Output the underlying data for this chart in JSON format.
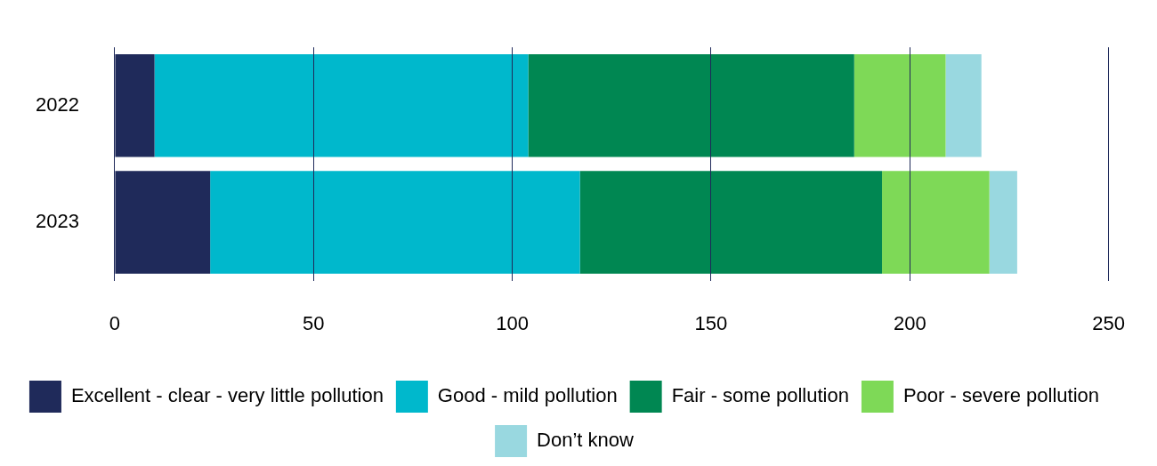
{
  "chart_data": {
    "type": "bar",
    "orientation": "horizontal",
    "stacked": true,
    "categories": [
      "2022",
      "2023"
    ],
    "series": [
      {
        "name": "Excellent - clear - very little pollution",
        "color": "#1f2a5a",
        "values": [
          10,
          24
        ]
      },
      {
        "name": "Good - mild pollution",
        "color": "#00b8cc",
        "values": [
          94,
          93
        ]
      },
      {
        "name": "Fair - some pollution",
        "color": "#008752",
        "values": [
          82,
          76
        ]
      },
      {
        "name": "Poor - severe pollution",
        "color": "#7ed957",
        "values": [
          23,
          27
        ]
      },
      {
        "name": "Don’t know",
        "color": "#99d8e0",
        "values": [
          9,
          7
        ]
      }
    ],
    "xlim": [
      0,
      250
    ],
    "xticks": [
      0,
      50,
      100,
      150,
      200,
      250
    ],
    "grid": "x",
    "legend": "bottom"
  }
}
